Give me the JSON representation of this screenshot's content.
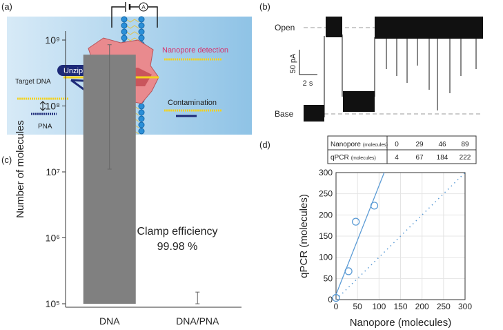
{
  "panel_labels": [
    "(a)",
    "(b)",
    "(c)",
    "(d)"
  ],
  "diagram": {
    "meter": "A",
    "unzip": "Unzip",
    "target_dna": "Target DNA",
    "pna": "PNA",
    "nanopore_detection": "Nanopore detection",
    "contamination": "Contamination"
  },
  "trace": {
    "open": "Open",
    "base": "Base",
    "current_scale": "50 pA",
    "time_scale": "2 s"
  },
  "table": {
    "rows": [
      {
        "label": "Nanopore",
        "unit": "(molecules)"
      },
      {
        "label": "qPCR",
        "unit": "(molecules)"
      }
    ]
  },
  "chart_data": [
    {
      "type": "bar",
      "categories": [
        "DNA",
        "DNA/PNA"
      ],
      "values": [
        600000000,
        100000
      ],
      "error_lower": [
        11000000,
        100000
      ],
      "error_upper": [
        850000000,
        150000
      ],
      "color": "#808080",
      "ylabel": "Number of molecules",
      "log_scale": true,
      "ylim": [
        100000,
        1000000000
      ],
      "yticks": [
        {
          "value": 100000,
          "label": "10⁵"
        },
        {
          "value": 1000000,
          "label": "10⁶"
        },
        {
          "value": 10000000,
          "label": "10⁷"
        },
        {
          "value": 100000000,
          "label": "10⁸"
        },
        {
          "value": 1000000000,
          "label": "10⁹"
        }
      ],
      "annotations": [
        "Clamp efficiency",
        "99.98 %"
      ]
    },
    {
      "type": "scatter",
      "x": [
        0,
        29,
        46,
        89
      ],
      "y": [
        4,
        67,
        184,
        222
      ],
      "color": "#5b9bd5",
      "xlabel": "Nanopore (molecules)",
      "ylabel": "qPCR (molecules)",
      "xlim": [
        0,
        300
      ],
      "ylim": [
        0,
        300
      ],
      "xticks": [
        0,
        50,
        100,
        150,
        200,
        250,
        300
      ],
      "yticks": [
        0,
        50,
        100,
        150,
        200,
        250,
        300
      ],
      "grid": true,
      "fit_line": {
        "x": [
          0,
          112
        ],
        "y": [
          12,
          300
        ]
      },
      "identity_line": {
        "x": [
          0,
          300
        ],
        "y": [
          0,
          300
        ]
      }
    }
  ]
}
